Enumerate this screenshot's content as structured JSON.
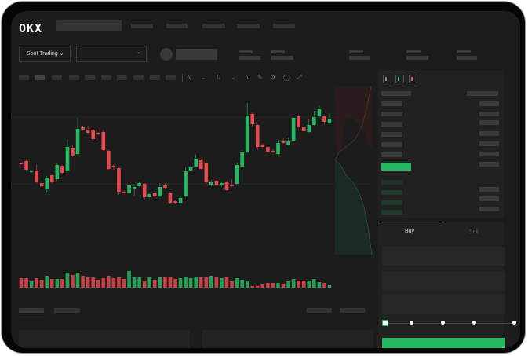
{
  "header": {
    "logo": "OKX"
  },
  "market": {
    "mode_selector": "Spot Trading",
    "pair_selector": ""
  },
  "toolbar": {
    "icons": [
      "indicator-icon",
      "compare-icon",
      "fx-icon",
      "line-tool-icon",
      "pen-icon",
      "settings-icon",
      "camera-icon",
      "expand-icon"
    ]
  },
  "orderbook": {
    "view_icons": [
      "both-sides-icon",
      "bids-only-icon",
      "asks-only-icon"
    ]
  },
  "trade": {
    "tabs": [
      {
        "label": "Buy",
        "active": true
      },
      {
        "label": "Sell",
        "active": false
      }
    ],
    "slider_percent": 0,
    "slider_steps": 5
  },
  "colors": {
    "up": "#25b862",
    "down": "#e5484d",
    "background": "#1c1c1c",
    "button": "#25b862"
  },
  "chart": {
    "type": "candlestick",
    "candles": [
      [
        95,
        93,
        96,
        92
      ],
      [
        97,
        86,
        98,
        85
      ],
      [
        83,
        85,
        86,
        82
      ],
      [
        85,
        70,
        92,
        69
      ],
      [
        69,
        65,
        71,
        63
      ],
      [
        61,
        76,
        78,
        57
      ],
      [
        79,
        70,
        80,
        69
      ],
      [
        74,
        92,
        94,
        72
      ],
      [
        91,
        82,
        92,
        81
      ],
      [
        84,
        115,
        124,
        83
      ],
      [
        114,
        104,
        117,
        103
      ],
      [
        106,
        138,
        152,
        105
      ],
      [
        140,
        137,
        142,
        136
      ],
      [
        137,
        133,
        142,
        132
      ],
      [
        136,
        125,
        142,
        123
      ],
      [
        133,
        131,
        134,
        130
      ],
      [
        134,
        111,
        137,
        110
      ],
      [
        110,
        87,
        111,
        86
      ],
      [
        91,
        89,
        93,
        86
      ],
      [
        88,
        58,
        89,
        54
      ],
      [
        58,
        56,
        60,
        55
      ],
      [
        56,
        66,
        68,
        54
      ],
      [
        62,
        64,
        67,
        52
      ],
      [
        65,
        69,
        71,
        64
      ],
      [
        68,
        51,
        69,
        48
      ],
      [
        51,
        55,
        56,
        50
      ],
      [
        56,
        52,
        58,
        51
      ],
      [
        52,
        64,
        69,
        51
      ],
      [
        66,
        63,
        69,
        62
      ],
      [
        56,
        44,
        58,
        43
      ],
      [
        46,
        44,
        47,
        43
      ],
      [
        44,
        50,
        52,
        43
      ],
      [
        52,
        84,
        89,
        51
      ],
      [
        85,
        89,
        92,
        84
      ],
      [
        90,
        100,
        105,
        89
      ],
      [
        99,
        87,
        100,
        86
      ],
      [
        94,
        70,
        99,
        68
      ],
      [
        67,
        71,
        73,
        65
      ],
      [
        72,
        67,
        73,
        66
      ],
      [
        66,
        69,
        70,
        65
      ],
      [
        70,
        60,
        72,
        59
      ],
      [
        67,
        65,
        74,
        64
      ],
      [
        68,
        92,
        95,
        67
      ],
      [
        90,
        108,
        111,
        89
      ],
      [
        108,
        155,
        171,
        107
      ],
      [
        157,
        144,
        159,
        140
      ],
      [
        143,
        115,
        144,
        111
      ],
      [
        118,
        115,
        119,
        114
      ],
      [
        115,
        109,
        116,
        108
      ],
      [
        110,
        108,
        113,
        107
      ],
      [
        106,
        120,
        124,
        105
      ],
      [
        122,
        120,
        126,
        119
      ],
      [
        118,
        122,
        127,
        117
      ],
      [
        123,
        152,
        153,
        122
      ],
      [
        154,
        140,
        155,
        139
      ],
      [
        140,
        135,
        141,
        134
      ],
      [
        134,
        143,
        150,
        133
      ],
      [
        143,
        153,
        161,
        142
      ],
      [
        154,
        163,
        168,
        153
      ],
      [
        154,
        147,
        155,
        143
      ],
      [
        145,
        151,
        158,
        144
      ]
    ],
    "volumes": [
      12,
      12,
      8,
      12,
      10,
      15,
      11,
      11,
      11,
      19,
      16,
      19,
      15,
      13,
      13,
      10,
      12,
      15,
      12,
      13,
      11,
      21,
      13,
      13,
      8,
      13,
      10,
      13,
      13,
      14,
      11,
      12,
      14,
      12,
      14,
      13,
      13,
      15,
      14,
      12,
      14,
      8,
      12,
      10,
      8,
      2,
      2,
      4,
      6,
      6,
      6,
      5,
      8,
      11,
      9,
      9,
      9,
      11,
      7,
      6,
      3
    ]
  }
}
